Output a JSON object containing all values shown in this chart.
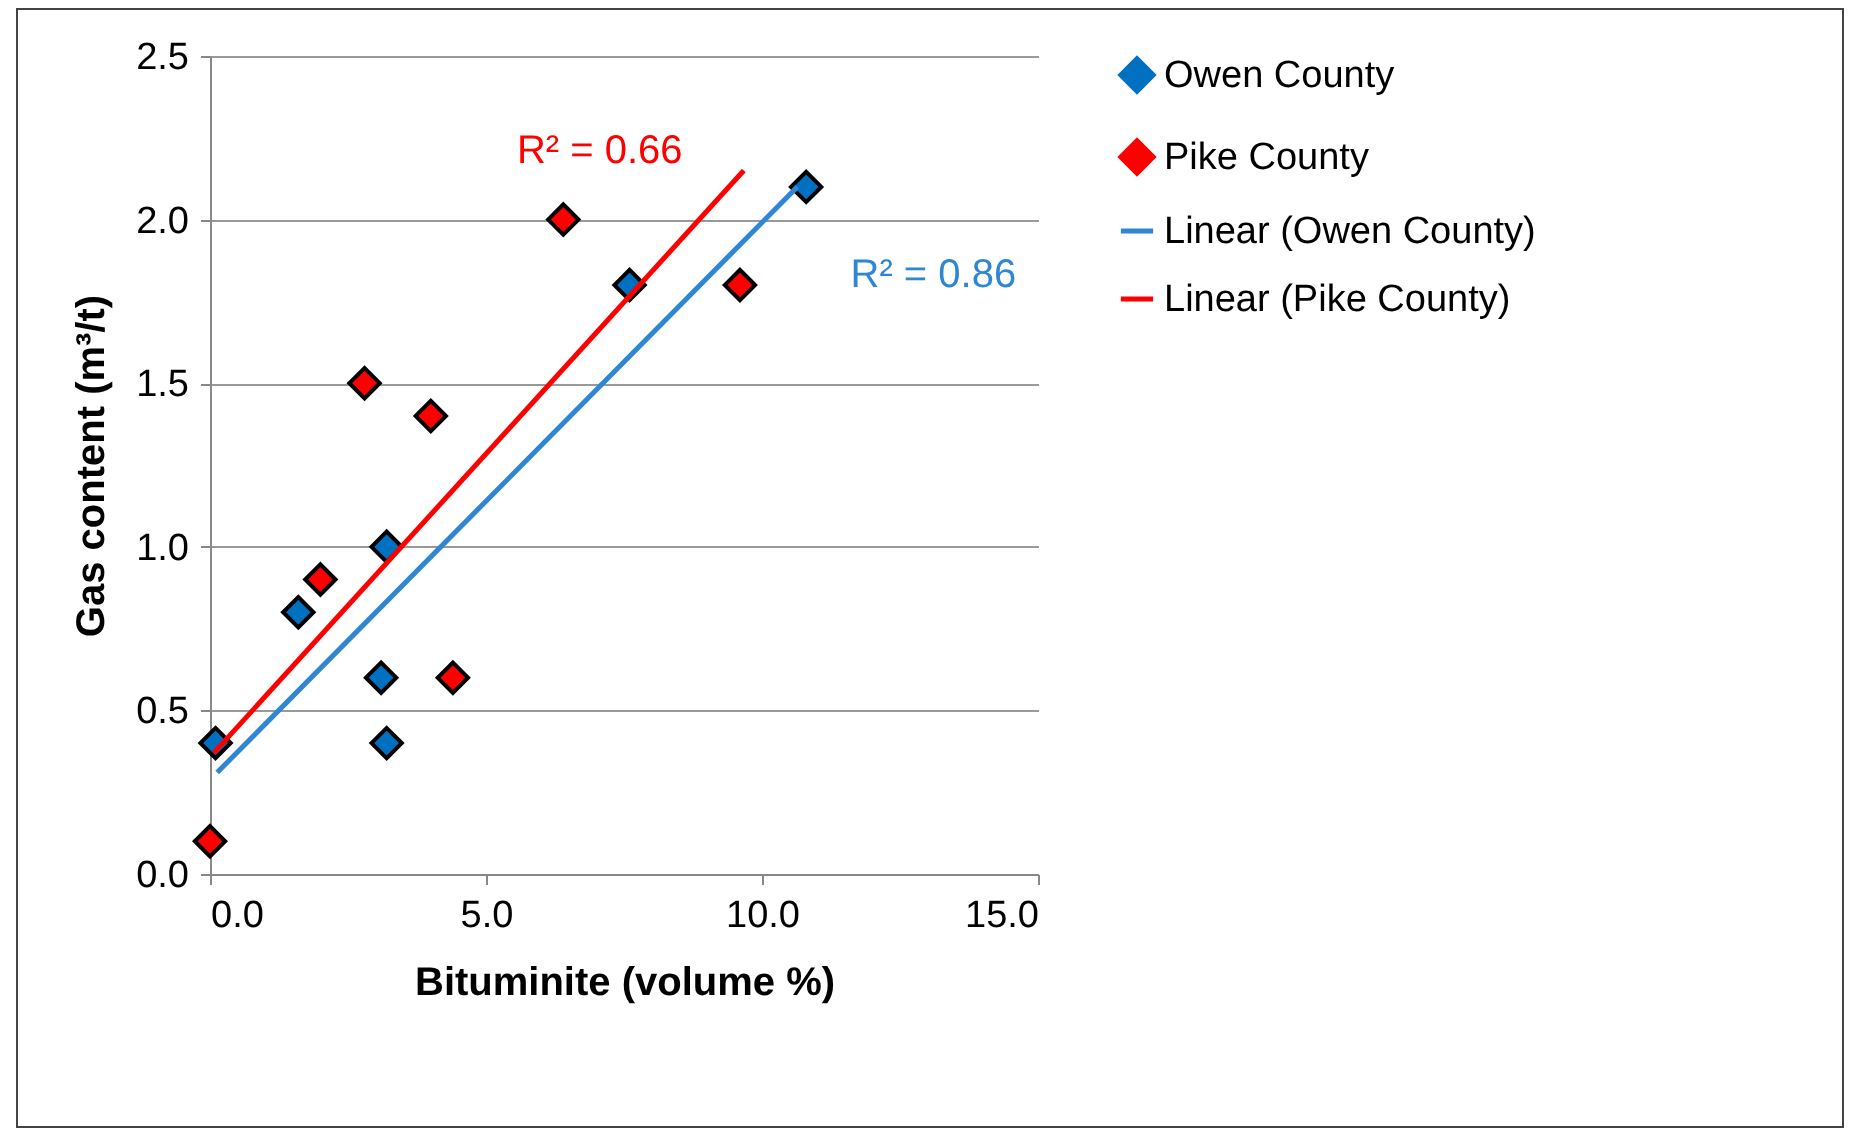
{
  "chart_data": {
    "type": "scatter",
    "xlabel": "Bituminite (volume %)",
    "ylabel": "Gas content (m³/t)",
    "xlim": [
      0,
      15
    ],
    "xticks": [
      {
        "value": 0,
        "label": "0.0"
      },
      {
        "value": 5,
        "label": "5.0"
      },
      {
        "value": 10,
        "label": "10.0"
      },
      {
        "value": 15,
        "label": "15.0"
      }
    ],
    "ylim": [
      0,
      2.5
    ],
    "yticks": [
      {
        "value": 0,
        "label": "0.0"
      },
      {
        "value": 0.5,
        "label": "0.5"
      },
      {
        "value": 1,
        "label": "1.0"
      },
      {
        "value": 1.5,
        "label": "1.5"
      },
      {
        "value": 2,
        "label": "2.0"
      },
      {
        "value": 2.5,
        "label": "2.5"
      }
    ],
    "grid": "y",
    "legend": "right",
    "marker": "diamond",
    "series": [
      {
        "name": "Owen County",
        "color": "#0070c0",
        "x": [
          0.1,
          1.6,
          3.2,
          3.1,
          3.2,
          7.6,
          10.8
        ],
        "values": [
          0.4,
          0.8,
          1.0,
          0.6,
          0.4,
          1.8,
          2.1
        ]
      },
      {
        "name": "Pike County",
        "color": "#ff0000",
        "x": [
          0,
          2.0,
          2.8,
          4.0,
          4.4,
          6.4,
          9.6
        ],
        "values": [
          0.1,
          0.9,
          1.5,
          1.4,
          0.6,
          2.0,
          1.8
        ]
      },
      {
        "name": "Linear (Owen County)",
        "type": "line",
        "marker": "none",
        "color": "#2e86d4",
        "x": [
          0.13,
          10.64
        ],
        "values": [
          0.31,
          2.1
        ]
      },
      {
        "name": "Linear (Pike County)",
        "type": "line",
        "marker": "none",
        "color": "#ff0000",
        "x": [
          0.07,
          9.67
        ],
        "values": [
          0.37,
          2.15
        ]
      }
    ],
    "annotations": [
      "R² = 0.86",
      "R² = 0.66"
    ]
  }
}
